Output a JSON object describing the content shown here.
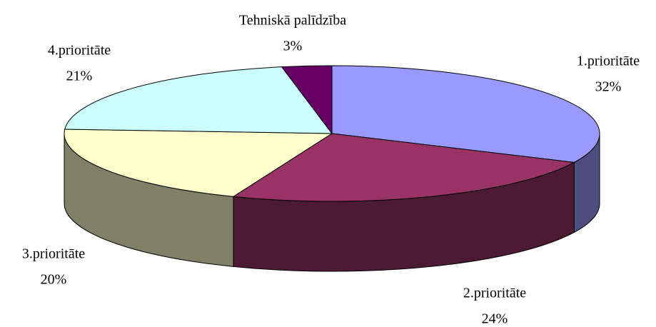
{
  "chart_data": {
    "type": "pie3d",
    "categories": [
      "1.prioritāte",
      "2.prioritāte",
      "3.prioritāte",
      "4.prioritāte",
      "Tehniskā palīdzība"
    ],
    "values": [
      32,
      24,
      20,
      21,
      3
    ],
    "value_labels": [
      "32%",
      "24%",
      "20%",
      "21%",
      "3%"
    ],
    "colors": [
      "#9999ff",
      "#993366",
      "#ffffcc",
      "#ccffff",
      "#660066"
    ]
  }
}
